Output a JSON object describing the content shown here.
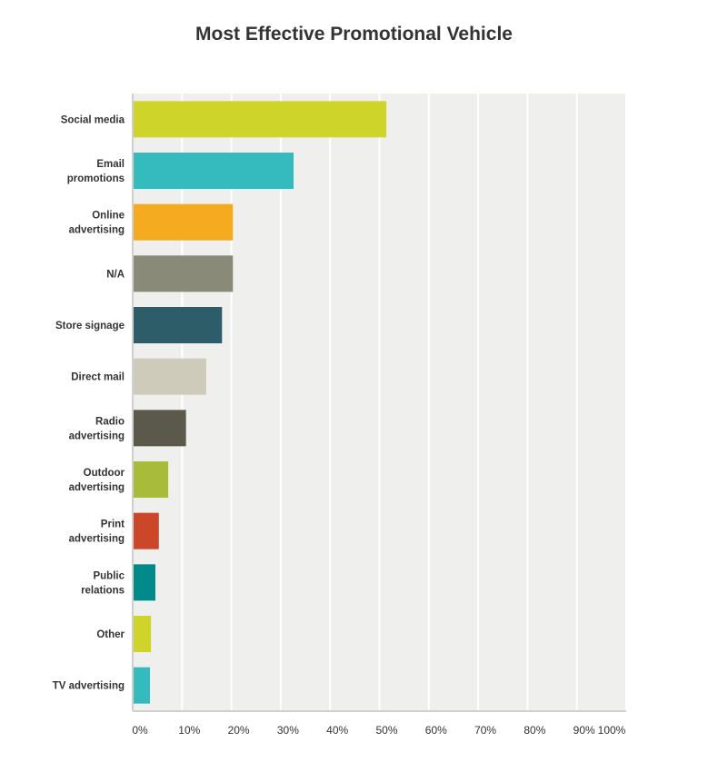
{
  "chart_data": {
    "type": "bar",
    "orientation": "horizontal",
    "title": "Most Effective Promotional Vehicle",
    "xlabel": "",
    "ylabel": "",
    "xlim": [
      0,
      100
    ],
    "grid": true,
    "categories": [
      "Social media",
      "Email promotions",
      "Online advertising",
      "N/A",
      "Store signage",
      "Direct mail",
      "Radio advertising",
      "Outdoor advertising",
      "Print advertising",
      "Public relations",
      "Other",
      "TV advertising"
    ],
    "values": [
      51.4,
      32.6,
      20.3,
      20.3,
      18.1,
      14.9,
      10.8,
      7.2,
      5.3,
      4.6,
      3.7,
      3.5
    ],
    "colors": [
      "#cfd42a",
      "#35babd",
      "#f5ab20",
      "#898a78",
      "#2e5d6a",
      "#cfcbbb",
      "#5a594a",
      "#a9bc3a",
      "#cc4628",
      "#008b8a",
      "#cfd42a",
      "#35babd"
    ],
    "ticks": [
      "0%",
      "10%",
      "20%",
      "30%",
      "40%",
      "50%",
      "60%",
      "70%",
      "80%",
      "90%",
      "100%"
    ]
  }
}
